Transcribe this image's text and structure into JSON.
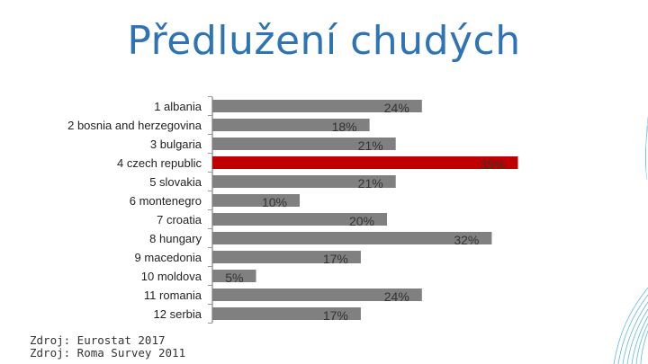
{
  "slide": {
    "title": "Předlužení chudých",
    "sources": [
      "Zdroj: Eurostat 2017",
      "Zdroj: Roma Survey 2011"
    ]
  },
  "chart_data": {
    "type": "bar",
    "orientation": "horizontal",
    "categories": [
      "1 albania",
      "2 bosnia and herzegovina",
      "3 bulgaria",
      "4 czech republic",
      "5 slovakia",
      "6 montenegro",
      "7 croatia",
      "8 hungary",
      "9 macedonia",
      "10 moldova",
      "11 romania",
      "12 serbia"
    ],
    "values": [
      24,
      18,
      21,
      35,
      21,
      10,
      20,
      32,
      17,
      5,
      24,
      17
    ],
    "value_labels": [
      "24%",
      "18%",
      "21%",
      "35%",
      "21%",
      "10%",
      "20%",
      "32%",
      "17%",
      "5%",
      "24%",
      "17%"
    ],
    "highlight_index": 3,
    "colors": {
      "bar": "#808080",
      "highlight": "#c00000",
      "axis": "#9a9a9a",
      "label": "#222222",
      "value_label": "#333333"
    },
    "xlim": [
      0,
      35
    ],
    "grid": false
  }
}
